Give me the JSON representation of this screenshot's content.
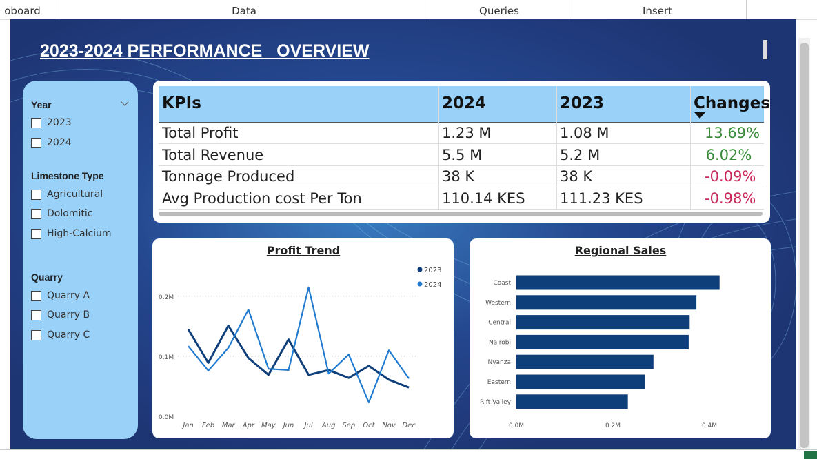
{
  "tabs": [
    "oboard",
    "Data",
    "Queries",
    "Insert"
  ],
  "title": "2023-2024 PERFORMANCE   OVERVIEW",
  "slicers": [
    {
      "title": "Year",
      "items": [
        "2023",
        "2024"
      ]
    },
    {
      "title": "Limestone Type",
      "items": [
        "Agricultural",
        "Dolomitic",
        "High-Calcium"
      ]
    },
    {
      "title": "Quarry",
      "items": [
        "Quarry A",
        "Quarry B",
        "Quarry C"
      ]
    }
  ],
  "kpi_table": {
    "headers": [
      "KPIs",
      "2024",
      "2023",
      "Changes"
    ],
    "rows": [
      [
        "Total Profit",
        "1.23 M",
        "1.08 M",
        "13.69%"
      ],
      [
        "Total Revenue",
        "5.5 M",
        "5.2 M",
        "6.02%"
      ],
      [
        "Tonnage Produced",
        "38 K",
        "38 K",
        "-0.09%"
      ],
      [
        "Avg Production cost Per Ton",
        "110.14 KES",
        "111.23 KES",
        "-0.98%"
      ]
    ],
    "positive_color": "#3a8a3a",
    "negative_color": "#c8285a"
  },
  "chart_data": [
    {
      "type": "line",
      "title": "Profit Trend",
      "categories": [
        "Jan",
        "Feb",
        "Mar",
        "Apr",
        "May",
        "Jun",
        "Jul",
        "Aug",
        "Sep",
        "Oct",
        "Nov",
        "Dec"
      ],
      "series": [
        {
          "name": "2023",
          "color": "#0f3f7a",
          "values": [
            0.145,
            0.089,
            0.151,
            0.097,
            0.069,
            0.128,
            0.069,
            0.077,
            0.064,
            0.084,
            0.061,
            0.048
          ]
        },
        {
          "name": "2024",
          "color": "#1f7ad0",
          "values": [
            0.117,
            0.076,
            0.114,
            0.178,
            0.079,
            0.077,
            0.215,
            0.071,
            0.103,
            0.023,
            0.11,
            0.063
          ]
        }
      ],
      "ylim": [
        0,
        0.24
      ],
      "yticks": [
        {
          "value": 0,
          "label": "0.0M"
        },
        {
          "value": 0.1,
          "label": "0.1M"
        },
        {
          "value": 0.2,
          "label": "0.2M"
        }
      ],
      "grid": true
    },
    {
      "type": "hbar",
      "title": "Regional Sales",
      "categories": [
        "Coast",
        "Western",
        "Central",
        "Nairobi",
        "Nyanza",
        "Eastern",
        "Rift Valley"
      ],
      "values": [
        0.421,
        0.373,
        0.359,
        0.357,
        0.284,
        0.267,
        0.231
      ],
      "color": "#0f3f7a",
      "xlim": [
        0,
        0.5
      ],
      "xticks": [
        {
          "value": 0,
          "label": "0.0M"
        },
        {
          "value": 0.2,
          "label": "0.2M"
        },
        {
          "value": 0.4,
          "label": "0.4M"
        }
      ]
    }
  ]
}
